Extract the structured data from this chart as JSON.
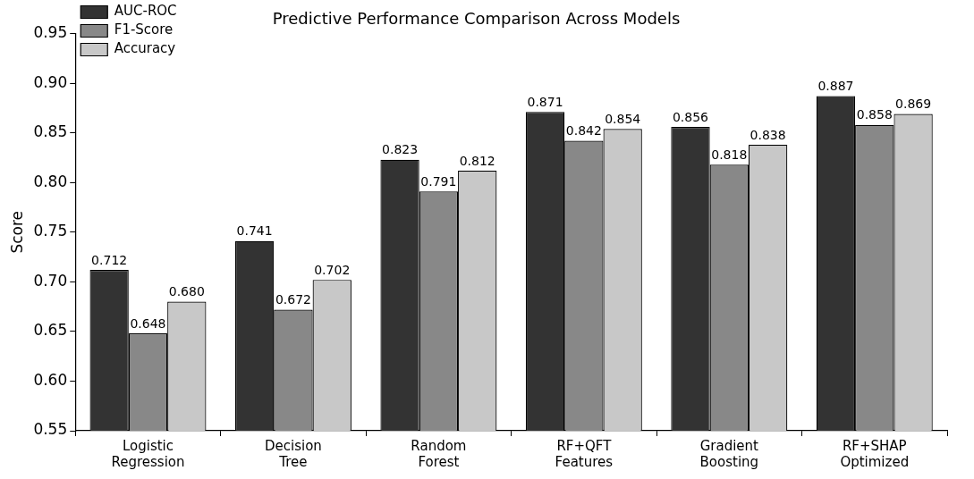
{
  "chart_data": {
    "type": "bar",
    "title": "Predictive Performance Comparison Across Models",
    "ylabel": "Score",
    "categories": [
      "Logistic Regression",
      "Decision Tree",
      "Random Forest",
      "RF+QFT Features",
      "Gradient Boosting",
      "RF+SHAP Optimized"
    ],
    "series": [
      {
        "name": "AUC-ROC",
        "color": "#333333",
        "values": [
          0.712,
          0.741,
          0.823,
          0.871,
          0.856,
          0.887
        ],
        "value_labels": [
          "0.712",
          "0.741",
          "0.823",
          "0.871",
          "0.856",
          "0.887"
        ]
      },
      {
        "name": "F1-Score",
        "color": "#888888",
        "values": [
          0.648,
          0.672,
          0.791,
          0.842,
          0.818,
          0.858
        ],
        "value_labels": [
          "0.648",
          "0.672",
          "0.791",
          "0.842",
          "0.818",
          "0.858"
        ]
      },
      {
        "name": "Accuracy",
        "color": "#c8c8c8",
        "values": [
          0.68,
          0.702,
          0.812,
          0.854,
          0.838,
          0.869
        ],
        "value_labels": [
          "0.680",
          "0.702",
          "0.812",
          "0.854",
          "0.838",
          "0.869"
        ]
      }
    ],
    "ylim": [
      0.55,
      0.95
    ],
    "yticks": [
      {
        "value": 0.55,
        "label": "0.55"
      },
      {
        "value": 0.6,
        "label": "0.60"
      },
      {
        "value": 0.65,
        "label": "0.65"
      },
      {
        "value": 0.7,
        "label": "0.70"
      },
      {
        "value": 0.75,
        "label": "0.75"
      },
      {
        "value": 0.8,
        "label": "0.80"
      },
      {
        "value": 0.85,
        "label": "0.85"
      },
      {
        "value": 0.9,
        "label": "0.90"
      },
      {
        "value": 0.95,
        "label": "0.95"
      }
    ],
    "grid": false,
    "legend": "top left"
  }
}
